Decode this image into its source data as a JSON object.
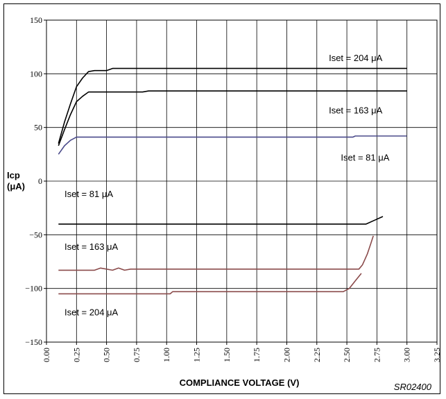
{
  "chart_data": {
    "type": "line",
    "xlabel": "COMPLIANCE VOLTAGE (V)",
    "ylabel_line1": "Icp",
    "ylabel_line2": "(μA)",
    "code": "SR02400",
    "xlim": [
      0.0,
      3.25
    ],
    "ylim": [
      -150,
      150
    ],
    "x_ticks": [
      "0.00",
      "0.25",
      "0.50",
      "0.75",
      "1.00",
      "1.25",
      "1.50",
      "1.75",
      "2.00",
      "2.25",
      "2.50",
      "2.75",
      "3.00",
      "3.25"
    ],
    "y_ticks": [
      "150",
      "100",
      "50",
      "0",
      "−50",
      "−100",
      "−150"
    ],
    "grid": true,
    "series": [
      {
        "name": "Iset = 204 μA",
        "color": "#000000",
        "points": [
          [
            0.1,
            35
          ],
          [
            0.15,
            55
          ],
          [
            0.2,
            72
          ],
          [
            0.25,
            88
          ],
          [
            0.3,
            96
          ],
          [
            0.35,
            102
          ],
          [
            0.4,
            103
          ],
          [
            0.45,
            103
          ],
          [
            0.5,
            103
          ],
          [
            0.55,
            105
          ],
          [
            1.0,
            105
          ],
          [
            2.0,
            105
          ],
          [
            3.0,
            105
          ]
        ]
      },
      {
        "name": "Iset = 163 μA",
        "color": "#000000",
        "points": [
          [
            0.1,
            33
          ],
          [
            0.15,
            48
          ],
          [
            0.2,
            62
          ],
          [
            0.25,
            74
          ],
          [
            0.3,
            79
          ],
          [
            0.35,
            83
          ],
          [
            0.5,
            83
          ],
          [
            0.8,
            83
          ],
          [
            0.85,
            84
          ],
          [
            1.5,
            84
          ],
          [
            2.5,
            84
          ],
          [
            3.0,
            84
          ]
        ]
      },
      {
        "name": "Iset = 81 μA",
        "color": "#4a4a8a",
        "points": [
          [
            0.1,
            25
          ],
          [
            0.15,
            33
          ],
          [
            0.2,
            38
          ],
          [
            0.25,
            41
          ],
          [
            0.5,
            41
          ],
          [
            1.5,
            41
          ],
          [
            2.55,
            41
          ],
          [
            2.57,
            42
          ],
          [
            3.0,
            42
          ]
        ]
      },
      {
        "name": "Iset = 81 μA",
        "color": "#000000",
        "points": [
          [
            0.1,
            -40
          ],
          [
            0.5,
            -40
          ],
          [
            1.5,
            -40
          ],
          [
            2.55,
            -40
          ],
          [
            2.66,
            -40
          ],
          [
            2.72,
            -37
          ],
          [
            2.8,
            -33
          ]
        ]
      },
      {
        "name": "Iset = 163 μA",
        "color": "#8a4a4a",
        "points": [
          [
            0.1,
            -83
          ],
          [
            0.4,
            -83
          ],
          [
            0.45,
            -81
          ],
          [
            0.55,
            -83
          ],
          [
            0.6,
            -81
          ],
          [
            0.65,
            -83
          ],
          [
            0.7,
            -82
          ],
          [
            1.5,
            -82
          ],
          [
            2.6,
            -82
          ],
          [
            2.63,
            -78
          ],
          [
            2.67,
            -68
          ],
          [
            2.7,
            -58
          ],
          [
            2.72,
            -51
          ]
        ]
      },
      {
        "name": "Iset = 204 μA",
        "color": "#8a4a4a",
        "points": [
          [
            0.1,
            -105
          ],
          [
            0.5,
            -105
          ],
          [
            1.03,
            -105
          ],
          [
            1.05,
            -103
          ],
          [
            2.0,
            -103
          ],
          [
            2.47,
            -103
          ],
          [
            2.52,
            -100
          ],
          [
            2.57,
            -93
          ],
          [
            2.62,
            -86
          ]
        ]
      }
    ],
    "annotations": [
      {
        "text": "Iset = 204 μA",
        "x": 2.35,
        "y": 112
      },
      {
        "text": "Iset = 163 μA",
        "x": 2.35,
        "y": 63
      },
      {
        "text": "Iset = 81 μA",
        "x": 2.45,
        "y": 19
      },
      {
        "text": "Iset = 81 μA",
        "x": 0.15,
        "y": -15
      },
      {
        "text": "Iset = 163 μA",
        "x": 0.15,
        "y": -64
      },
      {
        "text": "Iset = 204 μA",
        "x": 0.15,
        "y": -125
      }
    ]
  }
}
